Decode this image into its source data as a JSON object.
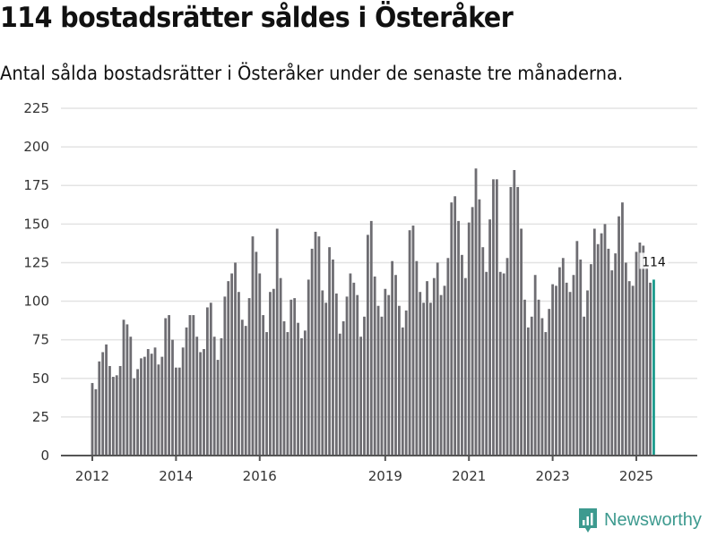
{
  "header": {
    "title": "114 bostadsrätter såldes i Österåker",
    "subtitle": "Antal sålda bostadsrätter i Österåker under de senaste tre månaderna."
  },
  "branding": {
    "logo_text": "Newsworthy",
    "logo_icon": "bar-chart-speech-bubble-icon",
    "color": "#3d9a8f"
  },
  "colors": {
    "bar": "#6e6d72",
    "highlight": "#1a9a8c",
    "grid": "#e3e3e3",
    "axis": "#555555"
  },
  "chart_data": {
    "type": "bar",
    "title": "114 bostadsrätter såldes i Österåker",
    "subtitle": "Antal sålda bostadsrätter i Österåker under de senaste tre månaderna.",
    "xlabel": "",
    "ylabel": "",
    "ylim": [
      0,
      225
    ],
    "yticks": [
      0,
      25,
      50,
      75,
      100,
      125,
      150,
      175,
      200,
      225
    ],
    "xticks": [
      "2012",
      "2014",
      "2016",
      "2019",
      "2021",
      "2023",
      "2025"
    ],
    "grid": true,
    "start": "2012-01",
    "frequency": "monthly",
    "highlight_last": true,
    "last_label": "114",
    "values": [
      47,
      43,
      61,
      67,
      72,
      58,
      51,
      52,
      58,
      88,
      85,
      77,
      50,
      56,
      63,
      64,
      69,
      66,
      70,
      59,
      64,
      89,
      91,
      75,
      57,
      57,
      70,
      83,
      91,
      91,
      77,
      67,
      69,
      96,
      99,
      77,
      62,
      76,
      103,
      113,
      118,
      125,
      106,
      88,
      84,
      102,
      142,
      132,
      118,
      91,
      80,
      106,
      108,
      147,
      115,
      87,
      80,
      101,
      102,
      86,
      76,
      81,
      114,
      134,
      145,
      142,
      107,
      99,
      135,
      127,
      105,
      79,
      87,
      103,
      118,
      112,
      104,
      77,
      90,
      143,
      152,
      116,
      97,
      90,
      108,
      104,
      126,
      117,
      97,
      83,
      94,
      146,
      149,
      126,
      106,
      99,
      113,
      99,
      115,
      125,
      104,
      110,
      128,
      164,
      168,
      152,
      130,
      115,
      151,
      161,
      186,
      166,
      135,
      119,
      153,
      179,
      179,
      119,
      118,
      128,
      174,
      185,
      174,
      147,
      101,
      83,
      90,
      117,
      101,
      89,
      80,
      95,
      111,
      110,
      122,
      128,
      112,
      106,
      117,
      139,
      127,
      90,
      107,
      124,
      147,
      137,
      144,
      150,
      134,
      120,
      131,
      155,
      164,
      125,
      113,
      110,
      132,
      138,
      136,
      122,
      112,
      114
    ]
  }
}
